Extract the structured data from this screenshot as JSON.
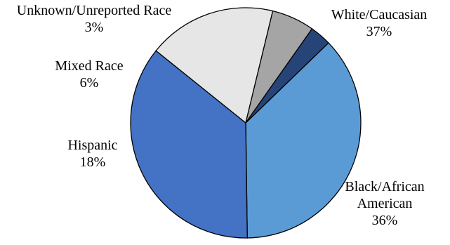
{
  "chart_data": {
    "type": "pie",
    "title": "",
    "slices": [
      {
        "label_lines": [
          "White/Caucasian"
        ],
        "value_label": "37%",
        "value": 37,
        "color": "#5B9BD5"
      },
      {
        "label_lines": [
          "Black/African",
          "American"
        ],
        "value_label": "36%",
        "value": 36,
        "color": "#4472C4"
      },
      {
        "label_lines": [
          "Hispanic"
        ],
        "value_label": "18%",
        "value": 18,
        "color": "#E7E6E6"
      },
      {
        "label_lines": [
          "Mixed Race"
        ],
        "value_label": "6%",
        "value": 6,
        "color": "#A5A5A5"
      },
      {
        "label_lines": [
          "Unknown/Unreported Race"
        ],
        "value_label": "3%",
        "value": 3,
        "color": "#264478"
      }
    ],
    "legend": "none",
    "data_labels": "outside"
  }
}
